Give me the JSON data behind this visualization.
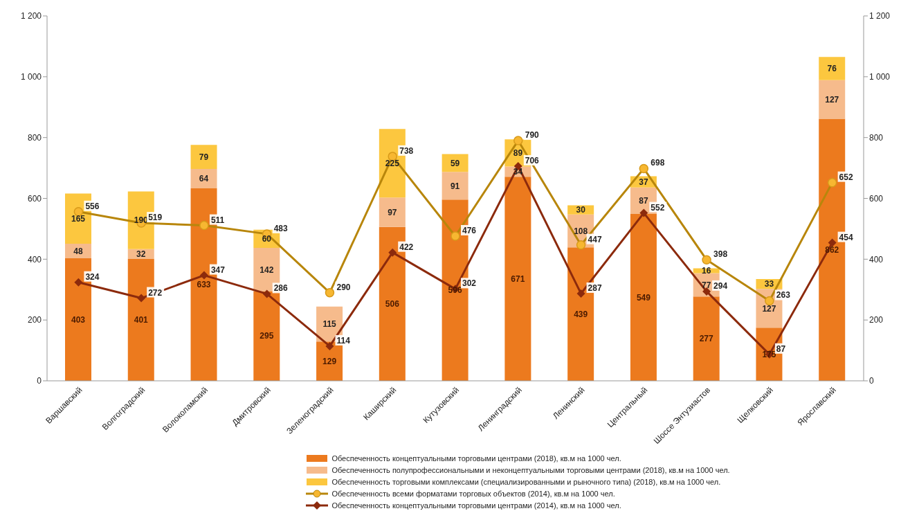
{
  "chart_data": {
    "type": "bar",
    "stacked": true,
    "data_labels": true,
    "legend": "bottom",
    "categories": [
      "Варшавский",
      "Волгоградский",
      "Волоколамский",
      "Дмитровский",
      "Зеленоградский",
      "Каширский",
      "Кутузовский",
      "Ленинградский",
      "Ленинский",
      "Центральный",
      "Шоссе Энтузиастов",
      "Щелковский",
      "Ярославский"
    ],
    "ylim": [
      0,
      1200
    ],
    "yticks": [
      0,
      200,
      400,
      600,
      800,
      {
        "value": 1000,
        "label": "1 000"
      },
      {
        "value": 1200,
        "label": "1 200"
      }
    ],
    "y2lim": [
      0,
      1200
    ],
    "y2ticks": [
      0,
      200,
      400,
      600,
      800,
      {
        "value": 1000,
        "label": "1 000"
      },
      {
        "value": 1200,
        "label": "1 200"
      }
    ],
    "series": [
      {
        "name": "Обеспеченность концептуальными торговыми центрами (2018), кв.м на 1000 чел.",
        "color": "#ec7a1e",
        "values": [
          403,
          401,
          633,
          295,
          129,
          506,
          596,
          671,
          439,
          549,
          277,
          175,
          862
        ]
      },
      {
        "name": "Обеспеченность полупрофессиональными и неконцептуальными торговыми центрами (2018), кв.м на 1000 чел.",
        "color": "#f6bb8c",
        "values": [
          48,
          32,
          64,
          142,
          115,
          97,
          91,
          34,
          108,
          87,
          77,
          127,
          127
        ]
      },
      {
        "name": "Обеспеченность торговыми комплексами (специализированными и рыночного типа) (2018), кв.м на 1000 чел.",
        "color": "#fcc73f",
        "values": [
          165,
          190,
          79,
          60,
          null,
          225,
          59,
          89,
          30,
          37,
          16,
          33,
          76
        ]
      },
      {
        "name": "Обеспеченность всеми форматами торговых объектов (2014), кв.м на 1000 чел.",
        "type": "line",
        "marker": "circle",
        "color": "#b8860b",
        "values": [
          556,
          519,
          511,
          483,
          290,
          738,
          476,
          790,
          447,
          698,
          398,
          263,
          652
        ]
      },
      {
        "name": "Обеспеченность концептуальными торговыми центрами (2014), кв.м на 1000 чел.",
        "type": "line",
        "marker": "diamond",
        "color": "#8c2a0c",
        "values": [
          324,
          272,
          347,
          286,
          114,
          422,
          302,
          706,
          287,
          552,
          294,
          87,
          454
        ]
      }
    ]
  }
}
